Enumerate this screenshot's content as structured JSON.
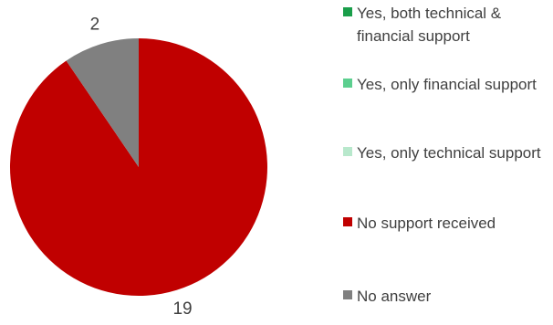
{
  "chart_data": {
    "type": "pie",
    "start_angle_deg": 0,
    "direction": "clockwise",
    "slices": [
      {
        "label": "Yes, both technical & financial support",
        "value": 0,
        "color": "#1a9e4a"
      },
      {
        "label": "Yes, only financial support",
        "value": 0,
        "color": "#5ccf8f"
      },
      {
        "label": "Yes, only technical support",
        "value": 0,
        "color": "#b8e8cc"
      },
      {
        "label": "No support received",
        "value": 19,
        "color": "#c00000"
      },
      {
        "label": "No answer",
        "value": 2,
        "color": "#808080"
      }
    ],
    "legend_position": "right"
  }
}
